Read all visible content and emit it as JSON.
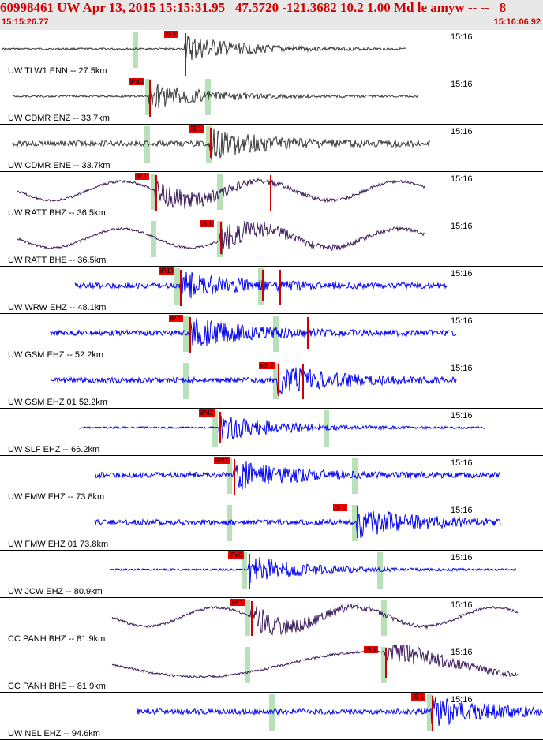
{
  "header": {
    "title": "60998461 UW Apr 13, 2015 15:15:31.95   47.5720 -121.3682 10.2 1.00 Md le amyw -- --   8",
    "start_time": "15:15:26.77",
    "end_time": "15:16:06.92"
  },
  "minute_label": "15:16",
  "colors": {
    "header_bg": "#e8e8e8",
    "title_text": "#d00000",
    "pick": "#ee0000",
    "phase_window": "#b9e1b9",
    "trace_black": "#3a3a3a",
    "trace_purple": "#3a1a5a",
    "trace_blue": "#0000ee"
  },
  "traces": [
    {
      "label": "UW TLW1 ENN -- 27.5km",
      "color": "#3a3a3a",
      "pick": "iS 1",
      "style": "burst"
    },
    {
      "label": "UW CDMR ENZ -- 33.7km",
      "color": "#3a3a3a",
      "pick": "iPd0",
      "style": "burst"
    },
    {
      "label": "UW CDMR ENE -- 33.7km",
      "color": "#3a3a3a",
      "pick": "iS 1",
      "style": "noisy"
    },
    {
      "label": "UW RATT BHZ -- 36.5km",
      "color": "#3a1a5a",
      "pick": "iP 1",
      "style": "wave"
    },
    {
      "label": "UW RATT BHE -- 36.5km",
      "color": "#3a1a5a",
      "pick": "iS 1",
      "style": "wave"
    },
    {
      "label": "UW WRW EHZ -- 48.1km",
      "color": "#0000ee",
      "pick": "iPd0",
      "style": "noisy"
    },
    {
      "label": "UW GSM EHZ -- 52.2km",
      "color": "#0000ee",
      "pick": "iP 1",
      "style": "noisy"
    },
    {
      "label": "UW GSM EHZ 01 52.2km",
      "color": "#0000ee",
      "pick": "eS 2",
      "style": "noisy"
    },
    {
      "label": "UW SLF EHZ -- 66.2km",
      "color": "#0000ee",
      "pick": "iPd1",
      "style": "burst"
    },
    {
      "label": "UW FMW EHZ -- 73.8km",
      "color": "#0000ee",
      "pick": "iPd1",
      "style": "noisy"
    },
    {
      "label": "UW FMW EHZ 01 73.8km",
      "color": "#0000ee",
      "pick": "iS 1",
      "style": "noisy"
    },
    {
      "label": "UW JCW EHZ -- 80.9km",
      "color": "#0000ee",
      "pick": "iPc0",
      "style": "burst"
    },
    {
      "label": "CC PANH BHZ -- 81.9km",
      "color": "#3a1a5a",
      "pick": "iP 1",
      "style": "wave"
    },
    {
      "label": "CC PANH BHE -- 81.9km",
      "color": "#3a1a5a",
      "pick": "iS 1",
      "style": "slow"
    },
    {
      "label": "UW NEL EHZ -- 94.6km",
      "color": "#0000ee",
      "pick": "iS 1",
      "style": "noisy"
    }
  ]
}
